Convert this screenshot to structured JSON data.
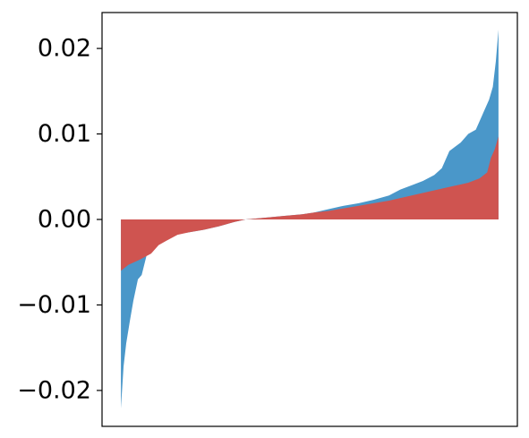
{
  "chart_data": {
    "type": "area",
    "title": "",
    "xlabel": "",
    "ylabel": "",
    "ylim": [
      -0.0242,
      0.0242
    ],
    "xlim": [
      -0.05,
      1.05
    ],
    "yticks": [
      -0.02,
      -0.01,
      0.0,
      0.01,
      0.02
    ],
    "ytick_labels": [
      "−0.02",
      "−0.01",
      "0.00",
      "0.01",
      "0.02"
    ],
    "grid": false,
    "legend": "none",
    "series": [
      {
        "color": "#4a97c9",
        "points": [
          [
            0.0,
            -0.0221
          ],
          [
            0.007,
            -0.0172
          ],
          [
            0.014,
            -0.0145
          ],
          [
            0.024,
            -0.0118
          ],
          [
            0.033,
            -0.0095
          ],
          [
            0.045,
            -0.007
          ],
          [
            0.055,
            -0.0065
          ],
          [
            0.068,
            -0.0042
          ],
          [
            0.08,
            -0.0035
          ],
          [
            0.09,
            -0.003
          ],
          [
            0.1,
            -0.0025
          ],
          [
            0.12,
            -0.002
          ],
          [
            0.15,
            -0.0017
          ],
          [
            0.18,
            -0.0015
          ],
          [
            0.22,
            -0.0012
          ],
          [
            0.26,
            -0.0008
          ],
          [
            0.3,
            -0.0003
          ],
          [
            0.33,
            0.0
          ],
          [
            0.38,
            0.0002
          ],
          [
            0.43,
            0.0004
          ],
          [
            0.48,
            0.0006
          ],
          [
            0.51,
            0.0008
          ],
          [
            0.55,
            0.0012
          ],
          [
            0.59,
            0.0016
          ],
          [
            0.63,
            0.0019
          ],
          [
            0.67,
            0.0023
          ],
          [
            0.71,
            0.0028
          ],
          [
            0.74,
            0.0035
          ],
          [
            0.77,
            0.004
          ],
          [
            0.8,
            0.0045
          ],
          [
            0.83,
            0.0052
          ],
          [
            0.85,
            0.006
          ],
          [
            0.87,
            0.008
          ],
          [
            0.9,
            0.009
          ],
          [
            0.92,
            0.01
          ],
          [
            0.94,
            0.0105
          ],
          [
            0.96,
            0.0125
          ],
          [
            0.975,
            0.014
          ],
          [
            0.985,
            0.0155
          ],
          [
            0.993,
            0.0185
          ],
          [
            1.0,
            0.0222
          ]
        ]
      },
      {
        "color": "#cf5450",
        "points": [
          [
            0.0,
            -0.006
          ],
          [
            0.02,
            -0.0053
          ],
          [
            0.05,
            -0.0047
          ],
          [
            0.08,
            -0.004
          ],
          [
            0.1,
            -0.003
          ],
          [
            0.12,
            -0.0025
          ],
          [
            0.15,
            -0.0018
          ],
          [
            0.18,
            -0.0015
          ],
          [
            0.22,
            -0.0012
          ],
          [
            0.26,
            -0.0008
          ],
          [
            0.3,
            -0.0003
          ],
          [
            0.33,
            0.0
          ],
          [
            0.38,
            0.0002
          ],
          [
            0.43,
            0.0004
          ],
          [
            0.48,
            0.0006
          ],
          [
            0.51,
            0.0008
          ],
          [
            0.55,
            0.001
          ],
          [
            0.59,
            0.0013
          ],
          [
            0.63,
            0.0016
          ],
          [
            0.67,
            0.0019
          ],
          [
            0.71,
            0.0022
          ],
          [
            0.74,
            0.0025
          ],
          [
            0.77,
            0.0028
          ],
          [
            0.8,
            0.0031
          ],
          [
            0.83,
            0.0034
          ],
          [
            0.86,
            0.0037
          ],
          [
            0.89,
            0.004
          ],
          [
            0.92,
            0.0043
          ],
          [
            0.95,
            0.0048
          ],
          [
            0.97,
            0.0055
          ],
          [
            0.98,
            0.0072
          ],
          [
            0.99,
            0.0082
          ],
          [
            1.0,
            0.0097
          ]
        ]
      }
    ]
  }
}
